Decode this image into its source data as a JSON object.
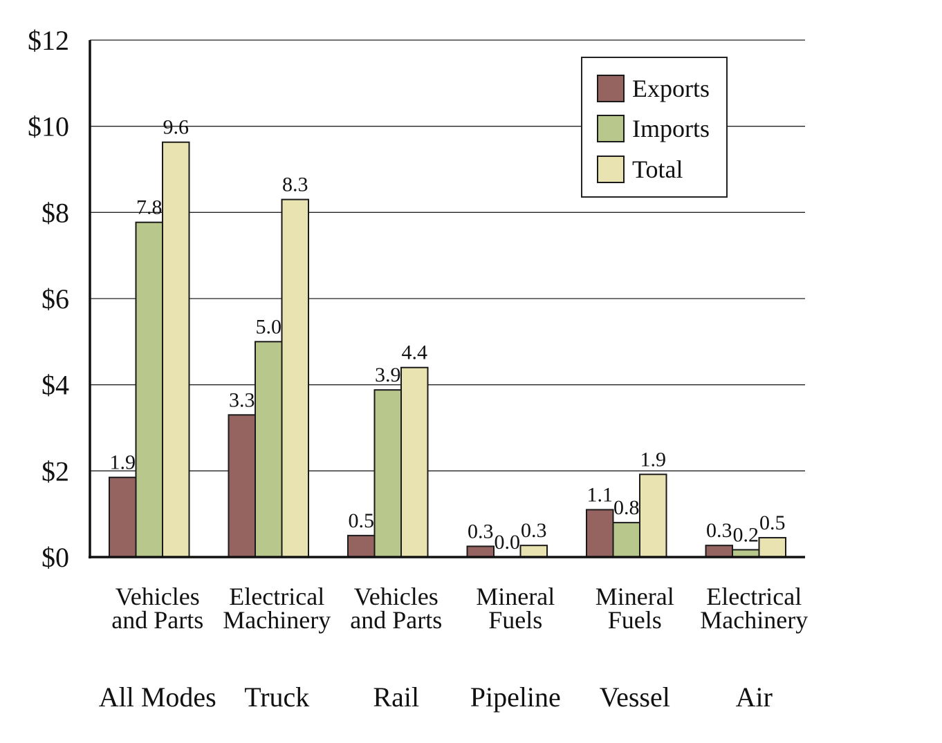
{
  "chart_data": {
    "type": "bar",
    "categories": [
      {
        "mode": "All Modes",
        "commodity": [
          "Vehicles",
          "and Parts"
        ]
      },
      {
        "mode": "Truck",
        "commodity": [
          "Electrical",
          "Machinery"
        ]
      },
      {
        "mode": "Rail",
        "commodity": [
          "Vehicles",
          "and Parts"
        ]
      },
      {
        "mode": "Pipeline",
        "commodity": [
          "Mineral",
          "Fuels"
        ]
      },
      {
        "mode": "Vessel",
        "commodity": [
          "Mineral",
          "Fuels"
        ]
      },
      {
        "mode": "Air",
        "commodity": [
          "Electrical",
          "Machinery"
        ]
      }
    ],
    "series": [
      {
        "name": "Exports",
        "color": "#956360",
        "values": [
          1.85,
          3.3,
          0.5,
          0.25,
          1.1,
          0.27
        ],
        "labels": [
          "1.9",
          "3.3",
          "0.5",
          "0.3",
          "1.1",
          "0.3"
        ]
      },
      {
        "name": "Imports",
        "color": "#b8c78b",
        "values": [
          7.77,
          5.0,
          3.88,
          0.0,
          0.8,
          0.17
        ],
        "labels": [
          "7.8",
          "5.0",
          "3.9",
          "0.0",
          "0.8",
          "0.2"
        ]
      },
      {
        "name": "Total",
        "color": "#e8e3b0",
        "values": [
          9.63,
          8.3,
          4.4,
          0.27,
          1.92,
          0.45
        ],
        "labels": [
          "9.6",
          "8.3",
          "4.4",
          "0.3",
          "1.9",
          "0.5"
        ]
      }
    ],
    "yticks": [
      "$0",
      "$2",
      "$4",
      "$6",
      "$8",
      "$10",
      "$12"
    ],
    "ylim": [
      0,
      12
    ],
    "grid": true,
    "legend_position": "top-right",
    "title": "",
    "xlabel": "",
    "ylabel": ""
  }
}
